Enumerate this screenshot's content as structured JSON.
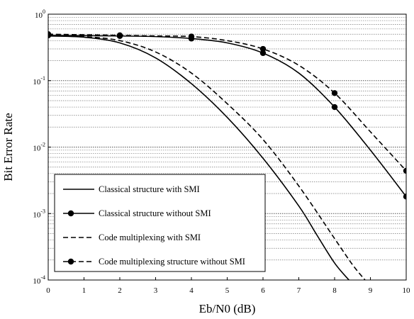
{
  "chart_data": {
    "type": "line",
    "title": "",
    "xlabel": "Eb/N0 (dB)",
    "ylabel": "Bit Error Rate",
    "xlim": [
      0,
      10
    ],
    "ylim": [
      0.0001,
      1
    ],
    "yscale": "log",
    "grid": "horizontal dotted, on minor log ticks",
    "legend_position": "bottom-left",
    "x_ticks": [
      "0",
      "1",
      "2",
      "3",
      "4",
      "5",
      "6",
      "7",
      "8",
      "9",
      "10"
    ],
    "y_ticks": [
      {
        "base": "10",
        "exp": "0"
      },
      {
        "base": "10",
        "exp": "-1"
      },
      {
        "base": "10",
        "exp": "-2"
      },
      {
        "base": "10",
        "exp": "-3"
      },
      {
        "base": "10",
        "exp": "-4"
      }
    ],
    "series": [
      {
        "name": "Classical structure with SMI",
        "style": "solid",
        "marker": "none",
        "x": [
          0,
          1,
          2,
          3,
          4,
          5,
          6,
          7,
          7.5,
          8,
          8.4
        ],
        "y": [
          0.47,
          0.45,
          0.37,
          0.22,
          0.09,
          0.028,
          0.0068,
          0.0013,
          0.00048,
          0.00018,
          0.0001
        ]
      },
      {
        "name": "Classical structure without SMI",
        "style": "solid",
        "marker": "circle",
        "x": [
          0,
          1,
          2,
          3,
          4,
          5,
          6,
          7,
          8,
          9,
          10
        ],
        "y": [
          0.48,
          0.475,
          0.47,
          0.46,
          0.43,
          0.37,
          0.26,
          0.13,
          0.04,
          0.009,
          0.0018
        ],
        "marker_x": [
          0,
          2,
          4,
          6,
          8,
          10
        ]
      },
      {
        "name": "Code multiplexing with SMI",
        "style": "dashed",
        "marker": "none",
        "x": [
          0,
          1,
          2,
          3,
          4,
          5,
          6,
          7,
          8,
          8.5,
          8.85
        ],
        "y": [
          0.48,
          0.46,
          0.4,
          0.27,
          0.13,
          0.045,
          0.013,
          0.0026,
          0.00042,
          0.00017,
          0.0001
        ]
      },
      {
        "name": "Code multiplexing structure without SMI",
        "style": "dashed",
        "marker": "circle",
        "x": [
          0,
          1,
          2,
          3,
          4,
          5,
          6,
          7,
          8,
          9,
          10
        ],
        "y": [
          0.5,
          0.49,
          0.48,
          0.47,
          0.46,
          0.4,
          0.3,
          0.17,
          0.065,
          0.017,
          0.0044
        ],
        "marker_x": [
          0,
          2,
          4,
          6,
          8,
          10
        ]
      }
    ]
  }
}
